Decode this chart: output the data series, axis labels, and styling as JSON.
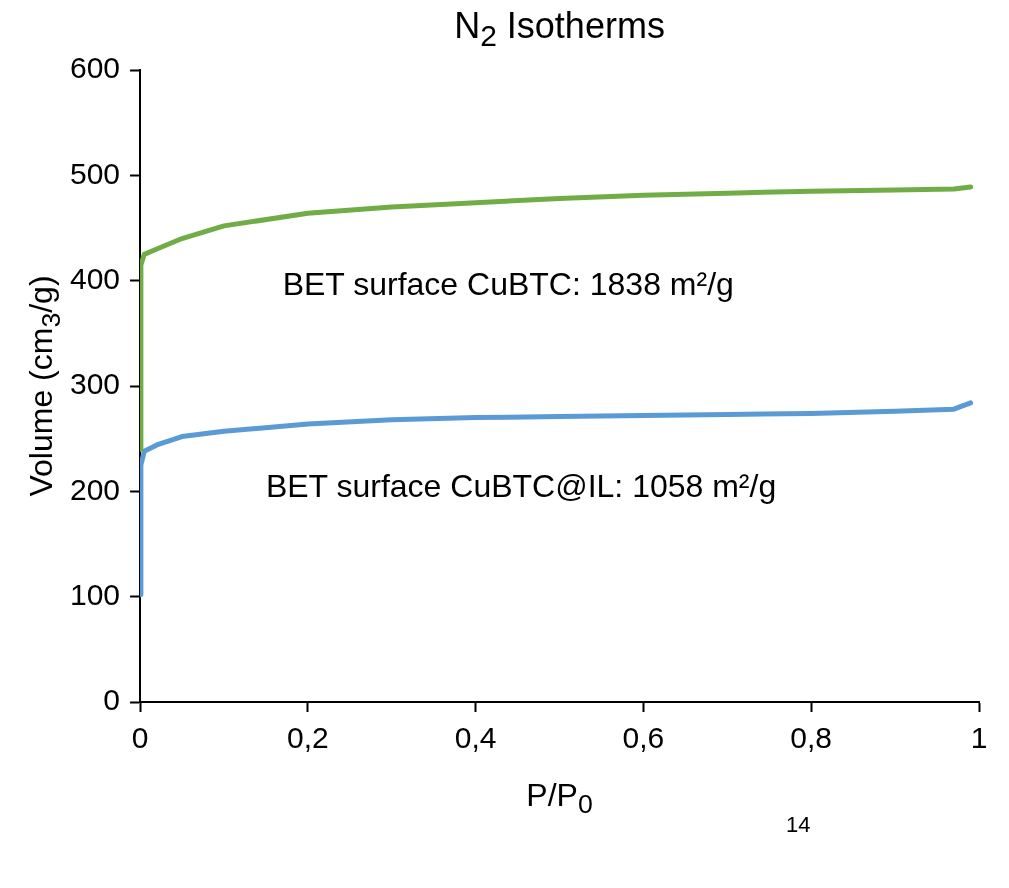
{
  "chart_data": {
    "type": "line",
    "title": "N$_{2}$ Isotherms",
    "xlabel": "P/P$_{0}$",
    "ylabel": "Volume (cm$_{3}$/g)",
    "annotations": [
      "BET surface CuBTC: 1838 m²/g",
      "BET surface CuBTC@IL: 1058 m²/g",
      "14"
    ],
    "xlim": [
      0,
      1
    ],
    "xticks": [
      0,
      {
        "value": 0.2,
        "label": "0,2"
      },
      {
        "value": 0.4,
        "label": "0,4"
      },
      {
        "value": 0.6,
        "label": "0,6"
      },
      {
        "value": 0.8,
        "label": "0,8"
      },
      1
    ],
    "ylim": [
      0,
      600
    ],
    "yticks": [
      0,
      100,
      200,
      300,
      400,
      500,
      600
    ],
    "grid": false,
    "legend": false,
    "marker": "none",
    "line_style": "solid",
    "series": [
      {
        "color": "#70ad47",
        "x": [
          0,
          0.001,
          0.005,
          0.02,
          0.05,
          0.1,
          0.2,
          0.3,
          0.4,
          0.5,
          0.6,
          0.7,
          0.8,
          0.9,
          0.97,
          0.99
        ],
        "values": [
          240,
          415,
          425,
          430,
          440,
          452,
          464,
          470,
          474,
          478,
          481,
          483,
          485,
          486,
          487,
          489
        ]
      },
      {
        "color": "#5b9bd5",
        "x": [
          0,
          0.001,
          0.005,
          0.02,
          0.05,
          0.1,
          0.2,
          0.3,
          0.4,
          0.5,
          0.6,
          0.7,
          0.8,
          0.9,
          0.97,
          0.99
        ],
        "values": [
          102,
          225,
          238,
          244,
          252,
          257,
          264,
          268,
          270,
          271,
          272,
          273,
          274,
          276,
          278,
          284
        ]
      }
    ]
  }
}
